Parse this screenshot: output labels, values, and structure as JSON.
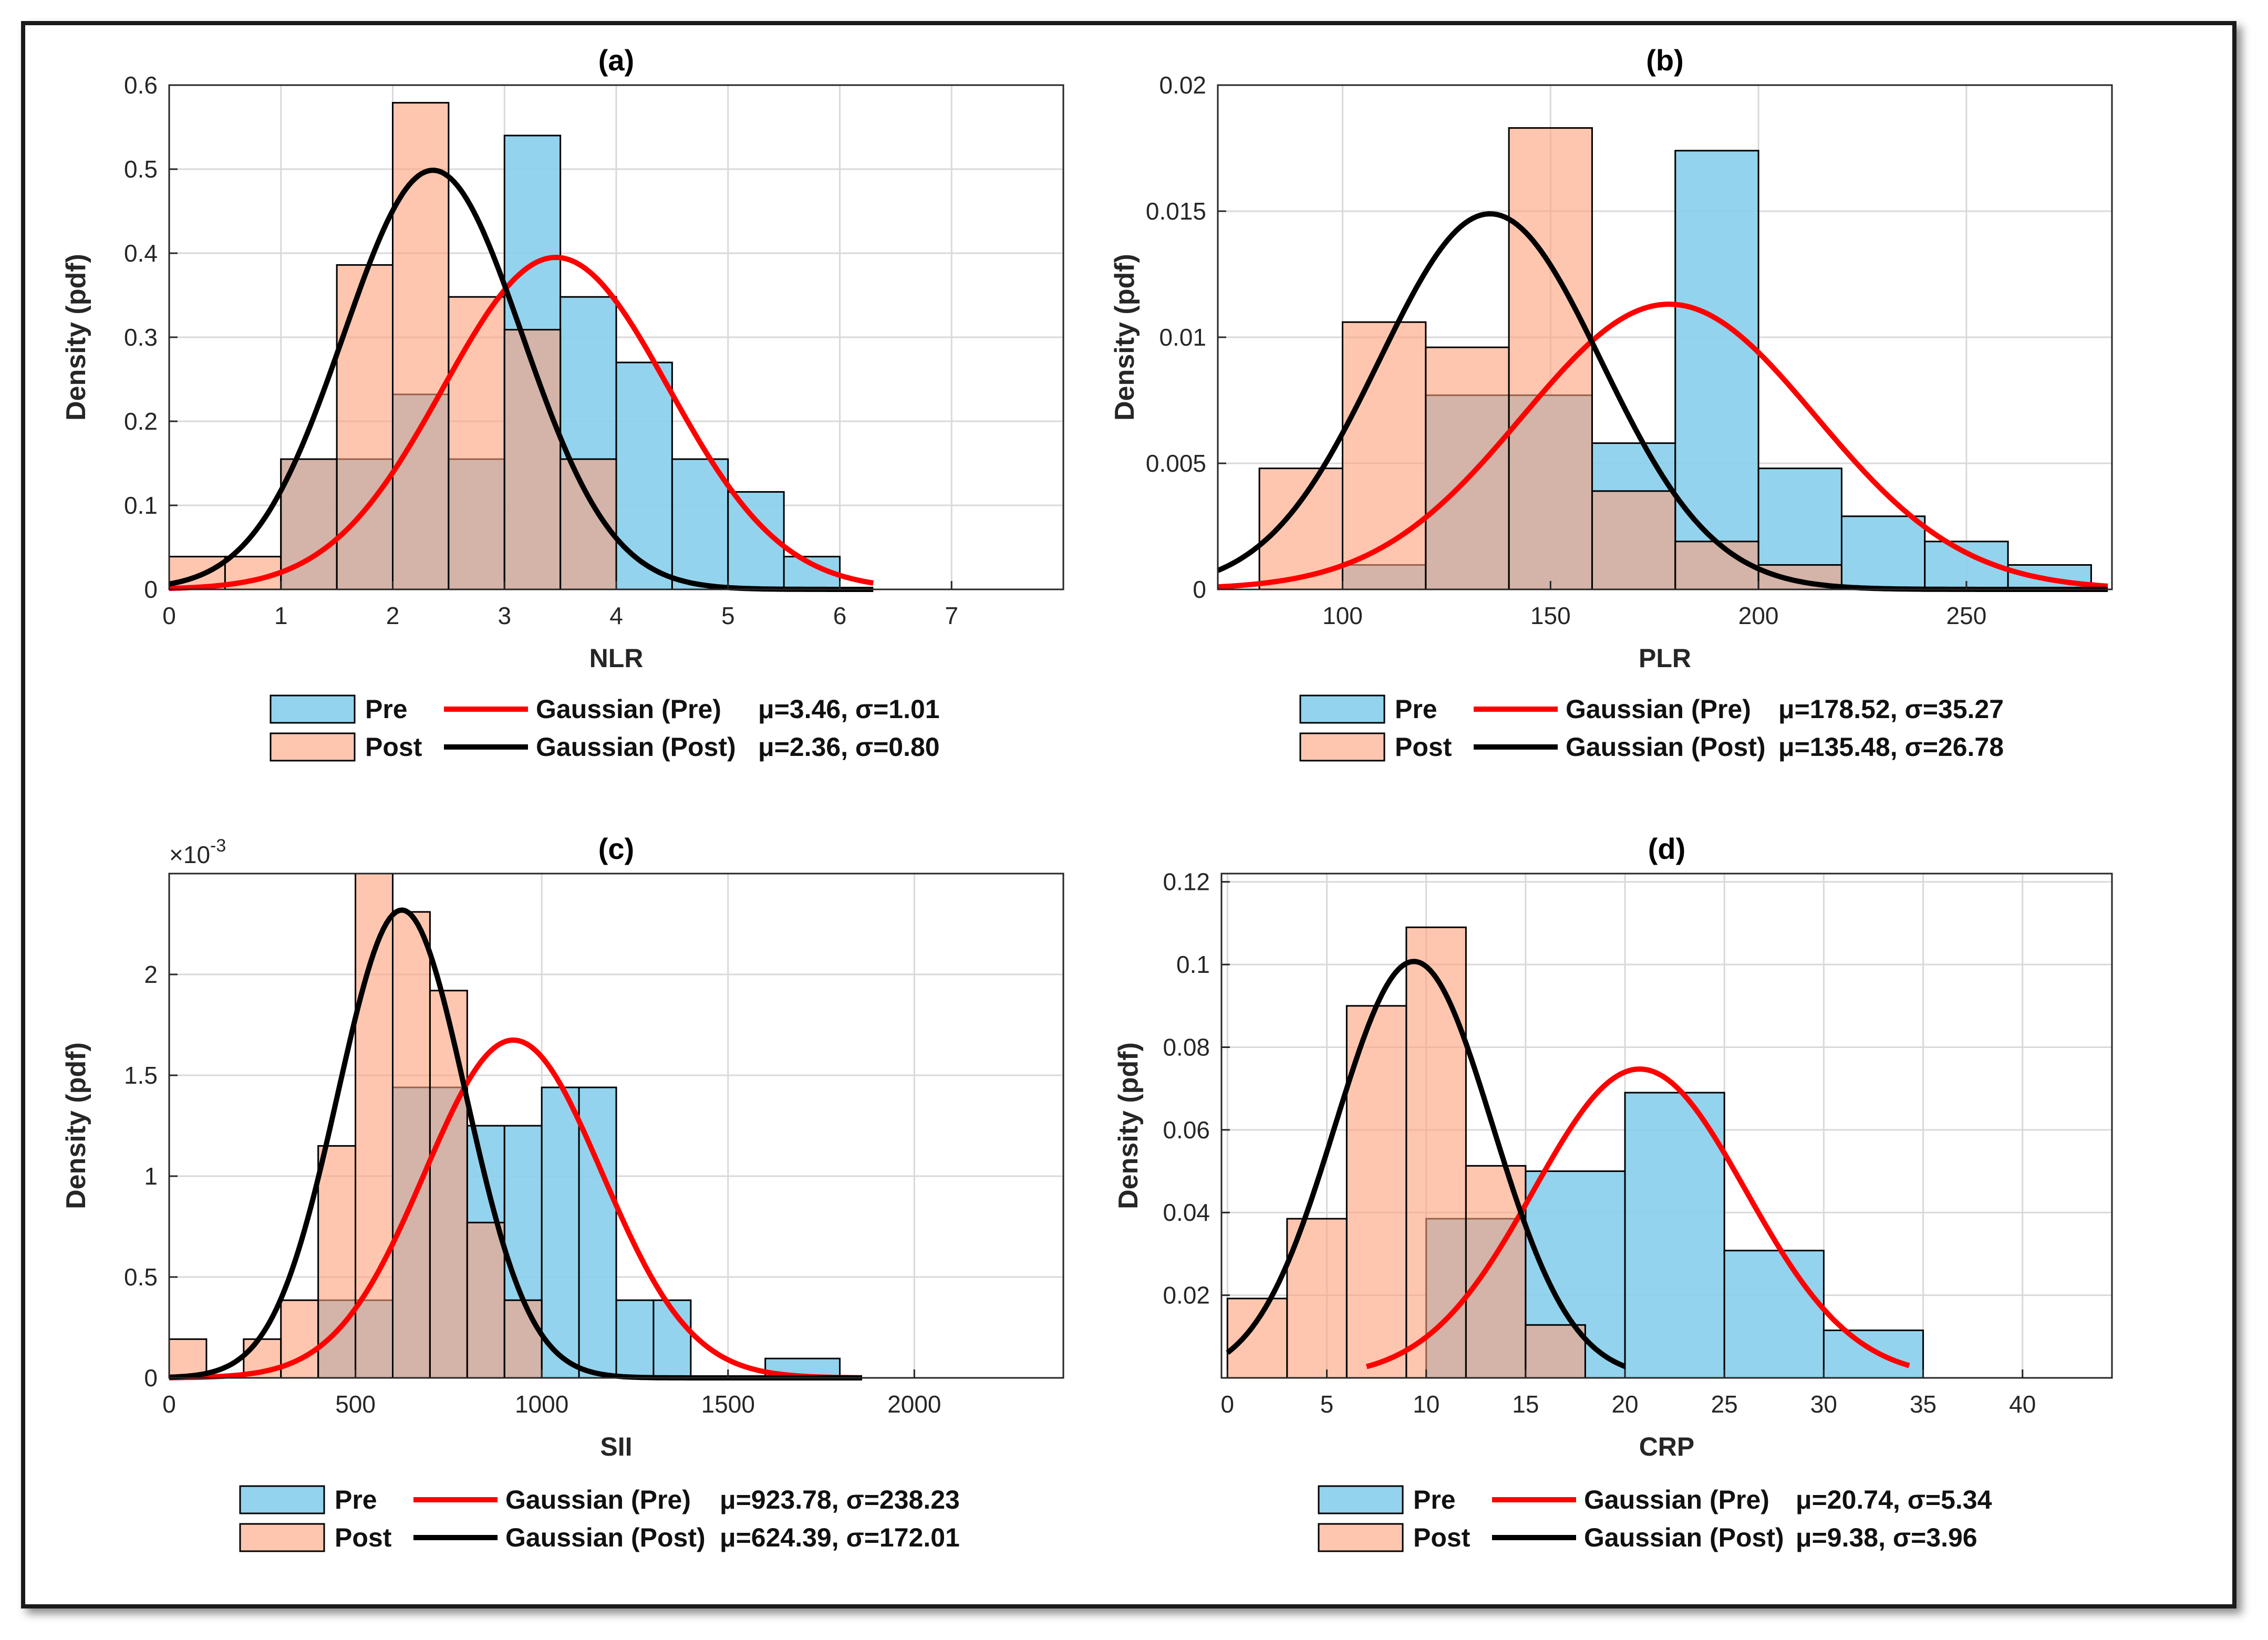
{
  "colors": {
    "pre": "#87CEEB",
    "post": "#FFA07A",
    "pre_curve": "#FF0000",
    "post_curve": "#000000"
  },
  "legend_labels": {
    "pre": "Pre",
    "post": "Post",
    "gauss_pre": "Gaussian (Pre)",
    "gauss_post": "Gaussian (Post)"
  },
  "chart_data": [
    {
      "id": "a",
      "type": "bar",
      "title": "(a)",
      "xlabel": "NLR",
      "ylabel": "Density (pdf)",
      "xlim": [
        0,
        8
      ],
      "ylim": [
        0,
        0.6
      ],
      "xticks": [
        0,
        1,
        2,
        3,
        4,
        5,
        6,
        7
      ],
      "xtick_labels": [
        "0",
        "1",
        "2",
        "3",
        "4",
        "5",
        "6",
        "7"
      ],
      "yticks": [
        0,
        0.1,
        0.2,
        0.3,
        0.4,
        0.5,
        0.6
      ],
      "ytick_labels": [
        "0",
        "0.1",
        "0.2",
        "0.3",
        "0.4",
        "0.5",
        "0.6"
      ],
      "series": [
        {
          "name": "Pre",
          "bins": [
            [
              1,
              1.5,
              0.155
            ],
            [
              1.5,
              2,
              0.155
            ],
            [
              2,
              2.5,
              0.232
            ],
            [
              2.5,
              3,
              0.155
            ],
            [
              3,
              3.5,
              0.54
            ],
            [
              3.5,
              4,
              0.348
            ],
            [
              4,
              4.5,
              0.27
            ],
            [
              4.5,
              5,
              0.155
            ],
            [
              5,
              5.5,
              0.116
            ],
            [
              5.5,
              6,
              0.039
            ]
          ]
        },
        {
          "name": "Post",
          "bins": [
            [
              0,
              0.5,
              0.039
            ],
            [
              0.5,
              1,
              0.039
            ],
            [
              1,
              1.5,
              0.155
            ],
            [
              1.5,
              2,
              0.386
            ],
            [
              2,
              2.5,
              0.579
            ],
            [
              2.5,
              3,
              0.348
            ],
            [
              3,
              3.5,
              0.309
            ],
            [
              3.5,
              4,
              0.155
            ]
          ]
        }
      ],
      "fits": [
        {
          "name": "Gaussian (Pre)",
          "mu": 3.46,
          "sigma": 1.01,
          "x_range": [
            0,
            6.3
          ]
        },
        {
          "name": "Gaussian (Post)",
          "mu": 2.36,
          "sigma": 0.8,
          "x_range": [
            0,
            6.3
          ]
        }
      ],
      "legend": {
        "pre_stats": "μ=3.46, σ=1.01",
        "post_stats": "μ=2.36, σ=0.80"
      }
    },
    {
      "id": "b",
      "type": "bar",
      "title": "(b)",
      "xlabel": "PLR",
      "ylabel": "Density (pdf)",
      "xlim": [
        70,
        285
      ],
      "ylim": [
        0,
        0.02
      ],
      "xticks": [
        100,
        150,
        200,
        250
      ],
      "xtick_labels": [
        "100",
        "150",
        "200",
        "250"
      ],
      "yticks": [
        0,
        0.005,
        0.01,
        0.015,
        0.02
      ],
      "ytick_labels": [
        "0",
        "0.005",
        "0.01",
        "0.015",
        "0.02"
      ],
      "series": [
        {
          "name": "Pre",
          "bins": [
            [
              100,
              120,
              0.00097
            ],
            [
              120,
              140,
              0.0077
            ],
            [
              140,
              160,
              0.0077
            ],
            [
              160,
              180,
              0.0058
            ],
            [
              180,
              200,
              0.0174
            ],
            [
              200,
              220,
              0.0048
            ],
            [
              220,
              240,
              0.0029
            ],
            [
              240,
              260,
              0.0019
            ],
            [
              260,
              280,
              0.00097
            ]
          ]
        },
        {
          "name": "Post",
          "bins": [
            [
              80,
              100,
              0.0048
            ],
            [
              100,
              120,
              0.0106
            ],
            [
              120,
              140,
              0.0096
            ],
            [
              140,
              160,
              0.0183
            ],
            [
              160,
              180,
              0.0039
            ],
            [
              180,
              200,
              0.0019
            ],
            [
              200,
              220,
              0.00097
            ]
          ]
        }
      ],
      "fits": [
        {
          "name": "Gaussian (Pre)",
          "mu": 178.52,
          "sigma": 35.27,
          "x_range": [
            70,
            284
          ]
        },
        {
          "name": "Gaussian (Post)",
          "mu": 135.48,
          "sigma": 26.78,
          "x_range": [
            70,
            284
          ]
        }
      ],
      "legend": {
        "pre_stats": "μ=178.52, σ=35.27",
        "post_stats": "μ=135.48, σ=26.78"
      }
    },
    {
      "id": "c",
      "type": "bar",
      "title": "(c)",
      "xlabel": "SII",
      "ylabel": "Density (pdf)",
      "multiplier": "×10-3",
      "xlim": [
        0,
        2400
      ],
      "ylim": [
        0,
        2.5
      ],
      "xticks": [
        0,
        500,
        1000,
        1500,
        2000
      ],
      "xtick_labels": [
        "0",
        "500",
        "1000",
        "1500",
        "2000"
      ],
      "yticks": [
        0,
        0.5,
        1,
        1.5,
        2
      ],
      "ytick_labels": [
        "0",
        "0.5",
        "1",
        "1.5",
        "2"
      ],
      "series": [
        {
          "name": "Pre",
          "bins": [
            [
              400,
              500,
              0.385
            ],
            [
              500,
              600,
              0.385
            ],
            [
              600,
              700,
              1.44
            ],
            [
              700,
              800,
              1.44
            ],
            [
              800,
              900,
              1.25
            ],
            [
              900,
              1000,
              1.25
            ],
            [
              1000,
              1100,
              1.44
            ],
            [
              1100,
              1200,
              1.44
            ],
            [
              1200,
              1300,
              0.385
            ],
            [
              1300,
              1400,
              0.385
            ],
            [
              1600,
              1800,
              0.096
            ]
          ]
        },
        {
          "name": "Post",
          "bins": [
            [
              0,
              100,
              0.192
            ],
            [
              200,
              300,
              0.192
            ],
            [
              300,
              400,
              0.385
            ],
            [
              400,
              500,
              1.15
            ],
            [
              500,
              600,
              2.5
            ],
            [
              600,
              700,
              2.31
            ],
            [
              700,
              800,
              1.92
            ],
            [
              800,
              900,
              0.77
            ],
            [
              900,
              1000,
              0.385
            ]
          ]
        }
      ],
      "fits": [
        {
          "name": "Gaussian (Pre)",
          "mu": 923.78,
          "sigma": 238.23,
          "x_range": [
            0,
            1860
          ]
        },
        {
          "name": "Gaussian (Post)",
          "mu": 624.39,
          "sigma": 172.01,
          "x_range": [
            0,
            1860
          ]
        }
      ],
      "legend": {
        "pre_stats": "μ=923.78, σ=238.23",
        "post_stats": "μ=624.39, σ=172.01"
      }
    },
    {
      "id": "d",
      "type": "bar",
      "title": "(d)",
      "xlabel": "CRP",
      "ylabel": "Density (pdf)",
      "xlim": [
        -0.3,
        44.5
      ],
      "ylim": [
        0,
        0.122
      ],
      "xticks": [
        0,
        5,
        10,
        15,
        20,
        25,
        30,
        35,
        40
      ],
      "xtick_labels": [
        "0",
        "5",
        "10",
        "15",
        "20",
        "25",
        "30",
        "35",
        "40"
      ],
      "yticks": [
        0.02,
        0.04,
        0.06,
        0.08,
        0.1,
        0.12
      ],
      "ytick_labels": [
        "0.02",
        "0.04",
        "0.06",
        "0.08",
        "0.1",
        "0.12"
      ],
      "series": [
        {
          "name": "Pre",
          "bins": [
            [
              10,
              15,
              0.0385
            ],
            [
              15,
              20,
              0.05
            ],
            [
              20,
              25,
              0.069
            ],
            [
              25,
              30,
              0.0308
            ],
            [
              30,
              35,
              0.0115
            ]
          ]
        },
        {
          "name": "Post",
          "bins": [
            [
              0,
              3,
              0.0192
            ],
            [
              3,
              6,
              0.0385
            ],
            [
              6,
              9,
              0.09
            ],
            [
              9,
              12,
              0.109
            ],
            [
              12,
              15,
              0.0513
            ],
            [
              15,
              18,
              0.0128
            ]
          ]
        }
      ],
      "fits": [
        {
          "name": "Gaussian (Pre)",
          "mu": 20.74,
          "sigma": 5.34,
          "x_range": [
            7,
            34.3
          ]
        },
        {
          "name": "Gaussian (Post)",
          "mu": 9.38,
          "sigma": 3.96,
          "x_range": [
            0,
            20
          ]
        }
      ],
      "legend": {
        "pre_stats": "μ=20.74, σ=5.34",
        "post_stats": "μ=9.38, σ=3.96"
      }
    }
  ]
}
